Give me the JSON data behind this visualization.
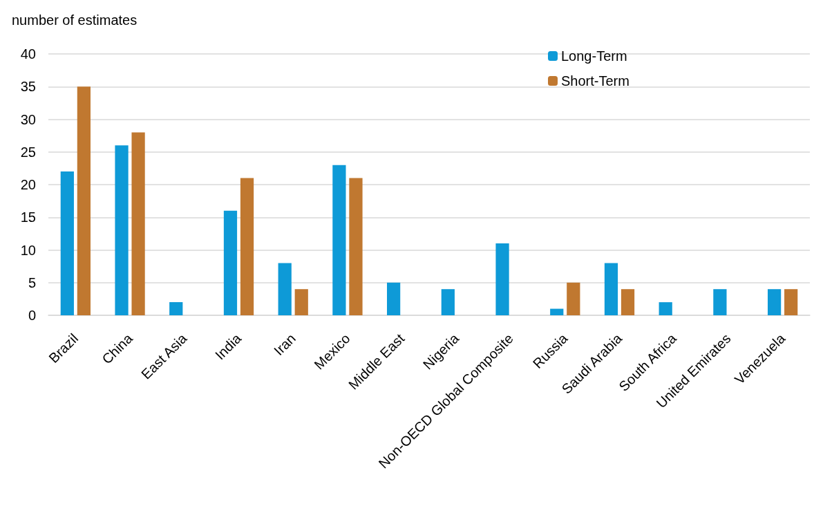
{
  "chart_data": {
    "type": "bar",
    "ylabel": "number of estimates",
    "categories": [
      "Brazil",
      "China",
      "East Asia",
      "India",
      "Iran",
      "Mexico",
      "Middle East",
      "Nigeria",
      "Non-OECD Global Composite",
      "Russia",
      "Saudi Arabia",
      "South Africa",
      "United Emirates",
      "Venezuela"
    ],
    "series": [
      {
        "name": "Long-Term",
        "color": "#0e9ad7",
        "values": [
          22,
          26,
          2,
          16,
          8,
          23,
          5,
          4,
          11,
          1,
          8,
          2,
          4,
          4
        ]
      },
      {
        "name": "Short-Term",
        "color": "#c07830",
        "values": [
          35,
          28,
          null,
          21,
          4,
          21,
          null,
          null,
          null,
          5,
          4,
          null,
          null,
          4
        ]
      }
    ],
    "ylim": [
      0,
      40
    ],
    "yticks": [
      0,
      5,
      10,
      15,
      20,
      25,
      30,
      35,
      40
    ],
    "grid": "y",
    "legend": "top right"
  }
}
